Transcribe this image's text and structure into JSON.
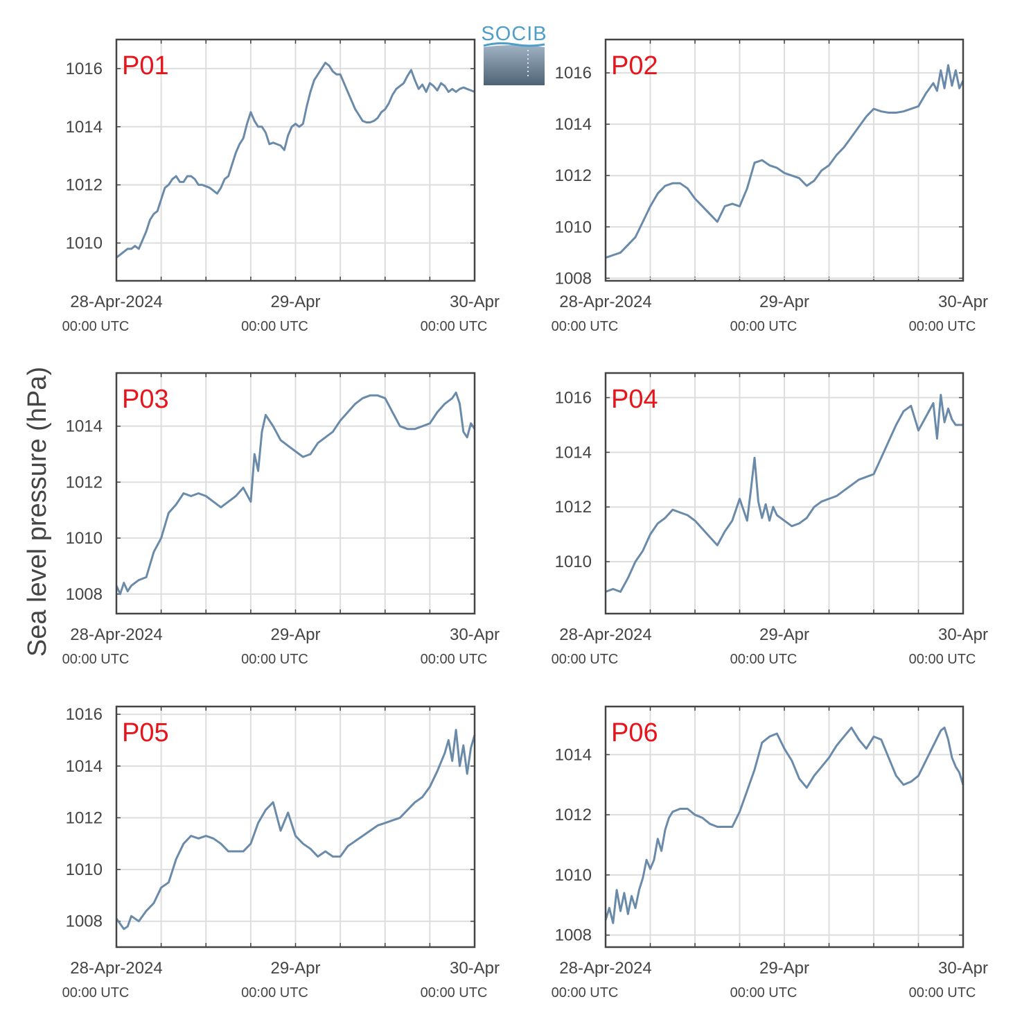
{
  "figure": {
    "ylabel": "Sea level pressure (hPa)",
    "logo_text": "SOCIB",
    "line_color": "#6a8aaa",
    "label_color": "#e8141c",
    "grid_color": "#dddddd",
    "axis_color": "#444444"
  },
  "chart_data": [
    {
      "type": "line",
      "title": "P01",
      "xlim": [
        0,
        48
      ],
      "ylim": [
        1008.7,
        1017
      ],
      "yticks": [
        1010,
        1012,
        1014,
        1016
      ],
      "xticks": [
        {
          "x": 0,
          "label": "28-Apr-2024",
          "sub": "00:00 UTC"
        },
        {
          "x": 24,
          "label": "29-Apr",
          "sub": "00:00 UTC"
        },
        {
          "x": 48,
          "label": "30-Apr",
          "sub": "00:00 UTC"
        }
      ],
      "xgrid": [
        6,
        12,
        18,
        24,
        30,
        36,
        42
      ],
      "series": [
        {
          "x": [
            0,
            0.5,
            1,
            1.5,
            2,
            2.5,
            3,
            3.5,
            4,
            4.5,
            5,
            5.5,
            6,
            6.5,
            7,
            7.5,
            8,
            8.5,
            9,
            9.5,
            10,
            10.5,
            11,
            11.5,
            12,
            12.5,
            13,
            13.5,
            14,
            14.5,
            15,
            15.5,
            16,
            16.5,
            17,
            17.5,
            18,
            18.5,
            19,
            19.5,
            20,
            20.5,
            21,
            21.5,
            22,
            22.5,
            23,
            23.5,
            24,
            24.5,
            25,
            25.5,
            26,
            26.5,
            27,
            27.5,
            28,
            28.5,
            29,
            29.5,
            30,
            30.5,
            31,
            31.5,
            32,
            32.5,
            33,
            33.5,
            34,
            34.5,
            35,
            35.5,
            36,
            36.5,
            37,
            37.5,
            38,
            38.5,
            39,
            39.5,
            40,
            40.5,
            41,
            41.5,
            42,
            42.5,
            43,
            43.5,
            44,
            44.5,
            45,
            45.5,
            46,
            46.5,
            47,
            47.5,
            48
          ],
          "y": [
            1009.5,
            1009.6,
            1009.7,
            1009.8,
            1009.8,
            1009.9,
            1009.8,
            1010.1,
            1010.4,
            1010.8,
            1011.0,
            1011.1,
            1011.5,
            1011.9,
            1012.0,
            1012.2,
            1012.3,
            1012.1,
            1012.1,
            1012.3,
            1012.3,
            1012.2,
            1012.0,
            1012.0,
            1011.95,
            1011.9,
            1011.8,
            1011.7,
            1011.9,
            1012.2,
            1012.3,
            1012.7,
            1013.1,
            1013.4,
            1013.6,
            1014.1,
            1014.5,
            1014.2,
            1014.0,
            1014.0,
            1013.8,
            1013.4,
            1013.45,
            1013.4,
            1013.35,
            1013.2,
            1013.7,
            1014.0,
            1014.1,
            1014.0,
            1014.1,
            1014.7,
            1015.2,
            1015.6,
            1015.8,
            1016.0,
            1016.2,
            1016.1,
            1015.9,
            1015.8,
            1015.8,
            1015.5,
            1015.2,
            1014.9,
            1014.6,
            1014.4,
            1014.2,
            1014.15,
            1014.15,
            1014.2,
            1014.3,
            1014.5,
            1014.6,
            1014.8,
            1015.1,
            1015.3,
            1015.4,
            1015.5,
            1015.75,
            1015.95,
            1015.6,
            1015.3,
            1015.45,
            1015.2,
            1015.5,
            1015.4,
            1015.25,
            1015.5,
            1015.4,
            1015.2,
            1015.3,
            1015.2,
            1015.3,
            1015.35,
            1015.3,
            1015.25,
            1015.2
          ]
        }
      ]
    },
    {
      "type": "line",
      "title": "P02",
      "xlim": [
        0,
        48
      ],
      "ylim": [
        1007.9,
        1017.3
      ],
      "yticks": [
        1008,
        1010,
        1012,
        1014,
        1016
      ],
      "xticks": [
        {
          "x": 0,
          "label": "28-Apr-2024",
          "sub": "00:00 UTC"
        },
        {
          "x": 24,
          "label": "29-Apr",
          "sub": "00:00 UTC"
        },
        {
          "x": 48,
          "label": "30-Apr",
          "sub": "00:00 UTC"
        }
      ],
      "xgrid": [
        6,
        12,
        18,
        24,
        30,
        36,
        42
      ],
      "series": [
        {
          "x": [
            0,
            1,
            2,
            3,
            4,
            5,
            6,
            7,
            8,
            9,
            10,
            11,
            12,
            13,
            14,
            15,
            16,
            17,
            18,
            19,
            20,
            21,
            22,
            23,
            24,
            25,
            26,
            27,
            28,
            29,
            30,
            31,
            32,
            33,
            34,
            35,
            36,
            37,
            38,
            39,
            40,
            41,
            42,
            43,
            44,
            44.5,
            45,
            45.5,
            46,
            46.5,
            47,
            47.5,
            48
          ],
          "y": [
            1008.8,
            1008.9,
            1009.0,
            1009.3,
            1009.6,
            1010.2,
            1010.8,
            1011.3,
            1011.6,
            1011.7,
            1011.7,
            1011.5,
            1011.1,
            1010.8,
            1010.5,
            1010.2,
            1010.8,
            1010.9,
            1010.8,
            1011.5,
            1012.5,
            1012.6,
            1012.4,
            1012.3,
            1012.1,
            1012.0,
            1011.9,
            1011.6,
            1011.8,
            1012.2,
            1012.4,
            1012.8,
            1013.1,
            1013.5,
            1013.9,
            1014.3,
            1014.6,
            1014.5,
            1014.45,
            1014.45,
            1014.5,
            1014.6,
            1014.7,
            1015.2,
            1015.6,
            1015.3,
            1016.1,
            1015.4,
            1016.3,
            1015.5,
            1016.1,
            1015.4,
            1015.7
          ]
        }
      ]
    },
    {
      "type": "line",
      "title": "P03",
      "xlim": [
        0,
        48
      ],
      "ylim": [
        1007.3,
        1015.9
      ],
      "yticks": [
        1008,
        1010,
        1012,
        1014
      ],
      "xticks": [
        {
          "x": 0,
          "label": "28-Apr-2024",
          "sub": "00:00 UTC"
        },
        {
          "x": 24,
          "label": "29-Apr",
          "sub": "00:00 UTC"
        },
        {
          "x": 48,
          "label": "30-Apr",
          "sub": "00:00 UTC"
        }
      ],
      "xgrid": [
        6,
        12,
        18,
        24,
        30,
        36,
        42
      ],
      "series": [
        {
          "x": [
            0,
            0.5,
            1,
            1.5,
            2,
            3,
            4,
            5,
            6,
            7,
            8,
            9,
            10,
            11,
            12,
            13,
            14,
            15,
            16,
            17,
            18,
            18.5,
            19,
            19.5,
            20,
            21,
            22,
            23,
            24,
            25,
            26,
            27,
            28,
            29,
            30,
            31,
            32,
            33,
            34,
            35,
            36,
            37,
            38,
            39,
            40,
            41,
            42,
            43,
            44,
            45,
            45.5,
            46,
            46.5,
            47,
            47.5,
            48
          ],
          "y": [
            1008.3,
            1008.0,
            1008.4,
            1008.1,
            1008.3,
            1008.5,
            1008.6,
            1009.5,
            1010.0,
            1010.9,
            1011.2,
            1011.6,
            1011.5,
            1011.6,
            1011.5,
            1011.3,
            1011.1,
            1011.3,
            1011.5,
            1011.8,
            1011.3,
            1013.0,
            1012.4,
            1013.8,
            1014.4,
            1014.0,
            1013.5,
            1013.3,
            1013.1,
            1012.9,
            1013.0,
            1013.4,
            1013.6,
            1013.8,
            1014.2,
            1014.5,
            1014.8,
            1015.0,
            1015.1,
            1015.1,
            1015.0,
            1014.5,
            1014.0,
            1013.9,
            1013.9,
            1014.0,
            1014.1,
            1014.5,
            1014.8,
            1015.0,
            1015.2,
            1014.8,
            1013.8,
            1013.6,
            1014.1,
            1013.9
          ]
        }
      ]
    },
    {
      "type": "line",
      "title": "P04",
      "xlim": [
        0,
        48
      ],
      "ylim": [
        1008.1,
        1016.9
      ],
      "yticks": [
        1010,
        1012,
        1014,
        1016
      ],
      "xticks": [
        {
          "x": 0,
          "label": "28-Apr-2024",
          "sub": "00:00 UTC"
        },
        {
          "x": 24,
          "label": "29-Apr",
          "sub": "00:00 UTC"
        },
        {
          "x": 48,
          "label": "30-Apr",
          "sub": "00:00 UTC"
        }
      ],
      "xgrid": [
        6,
        12,
        18,
        24,
        30,
        36,
        42
      ],
      "series": [
        {
          "x": [
            0,
            1,
            2,
            3,
            4,
            5,
            6,
            7,
            8,
            9,
            10,
            11,
            12,
            13,
            14,
            15,
            16,
            17,
            18,
            19,
            19.5,
            20,
            20.5,
            21,
            21.5,
            22,
            22.5,
            23,
            24,
            25,
            26,
            27,
            28,
            29,
            30,
            31,
            32,
            33,
            34,
            35,
            36,
            37,
            38,
            39,
            40,
            41,
            42,
            43,
            44,
            44.5,
            45,
            45.5,
            46,
            46.5,
            47,
            47.5,
            48
          ],
          "y": [
            1008.9,
            1009.0,
            1008.9,
            1009.4,
            1010.0,
            1010.4,
            1011.0,
            1011.4,
            1011.6,
            1011.9,
            1011.8,
            1011.7,
            1011.5,
            1011.2,
            1010.9,
            1010.6,
            1011.1,
            1011.5,
            1012.3,
            1011.5,
            1012.6,
            1013.8,
            1012.2,
            1011.6,
            1012.1,
            1011.5,
            1012.0,
            1011.7,
            1011.5,
            1011.3,
            1011.4,
            1011.6,
            1012.0,
            1012.2,
            1012.3,
            1012.4,
            1012.6,
            1012.8,
            1013.0,
            1013.1,
            1013.2,
            1013.8,
            1014.4,
            1015.0,
            1015.5,
            1015.7,
            1014.8,
            1015.3,
            1015.8,
            1014.5,
            1016.1,
            1015.1,
            1015.6,
            1015.2,
            1015.0,
            1015.0,
            1015.0
          ]
        }
      ]
    },
    {
      "type": "line",
      "title": "P05",
      "xlim": [
        0,
        48
      ],
      "ylim": [
        1007.0,
        1016.3
      ],
      "yticks": [
        1008,
        1010,
        1012,
        1014,
        1016
      ],
      "xticks": [
        {
          "x": 0,
          "label": "28-Apr-2024",
          "sub": "00:00 UTC"
        },
        {
          "x": 24,
          "label": "29-Apr",
          "sub": "00:00 UTC"
        },
        {
          "x": 48,
          "label": "30-Apr",
          "sub": "00:00 UTC"
        }
      ],
      "xgrid": [
        6,
        12,
        18,
        24,
        30,
        36,
        42
      ],
      "series": [
        {
          "x": [
            0,
            0.5,
            1,
            1.5,
            2,
            3,
            4,
            5,
            6,
            7,
            8,
            9,
            10,
            11,
            12,
            13,
            14,
            15,
            16,
            17,
            18,
            19,
            20,
            21,
            22,
            23,
            24,
            25,
            26,
            27,
            28,
            29,
            30,
            31,
            32,
            33,
            34,
            35,
            36,
            37,
            38,
            39,
            40,
            41,
            42,
            43,
            44,
            44.5,
            45,
            45.5,
            46,
            46.5,
            47,
            47.5,
            48
          ],
          "y": [
            1008.1,
            1007.9,
            1007.7,
            1007.8,
            1008.2,
            1008.0,
            1008.4,
            1008.7,
            1009.3,
            1009.5,
            1010.4,
            1011.0,
            1011.3,
            1011.2,
            1011.3,
            1011.2,
            1011.0,
            1010.7,
            1010.7,
            1010.7,
            1011.0,
            1011.8,
            1012.3,
            1012.6,
            1011.5,
            1012.2,
            1011.3,
            1011.0,
            1010.8,
            1010.5,
            1010.7,
            1010.5,
            1010.5,
            1010.9,
            1011.1,
            1011.3,
            1011.5,
            1011.7,
            1011.8,
            1011.9,
            1012.0,
            1012.3,
            1012.6,
            1012.8,
            1013.2,
            1013.8,
            1014.5,
            1015.0,
            1014.2,
            1015.4,
            1014.0,
            1014.8,
            1013.7,
            1014.7,
            1015.2
          ]
        }
      ]
    },
    {
      "type": "line",
      "title": "P06",
      "xlim": [
        0,
        48
      ],
      "ylim": [
        1007.6,
        1015.6
      ],
      "yticks": [
        1008,
        1010,
        1012,
        1014
      ],
      "xticks": [
        {
          "x": 0,
          "label": "28-Apr-2024",
          "sub": "00:00 UTC"
        },
        {
          "x": 24,
          "label": "29-Apr",
          "sub": "00:00 UTC"
        },
        {
          "x": 48,
          "label": "30-Apr",
          "sub": "00:00 UTC"
        }
      ],
      "xgrid": [
        6,
        12,
        18,
        24,
        30,
        36,
        42
      ],
      "series": [
        {
          "x": [
            0,
            0.5,
            1,
            1.5,
            2,
            2.5,
            3,
            3.5,
            4,
            4.5,
            5,
            5.5,
            6,
            6.5,
            7,
            7.5,
            8,
            8.5,
            9,
            10,
            11,
            12,
            13,
            14,
            15,
            16,
            17,
            18,
            19,
            20,
            21,
            22,
            23,
            24,
            25,
            26,
            27,
            28,
            29,
            30,
            31,
            32,
            33,
            34,
            35,
            36,
            37,
            38,
            39,
            40,
            41,
            42,
            43,
            44,
            45,
            45.5,
            46,
            46.5,
            47,
            47.5,
            48
          ],
          "y": [
            1008.5,
            1008.9,
            1008.4,
            1009.5,
            1008.8,
            1009.4,
            1008.7,
            1009.3,
            1008.9,
            1009.5,
            1009.9,
            1010.5,
            1010.2,
            1010.5,
            1011.2,
            1010.8,
            1011.5,
            1011.9,
            1012.1,
            1012.2,
            1012.2,
            1012.0,
            1011.9,
            1011.7,
            1011.6,
            1011.6,
            1011.6,
            1012.1,
            1012.8,
            1013.5,
            1014.4,
            1014.6,
            1014.7,
            1014.2,
            1013.8,
            1013.2,
            1012.9,
            1013.3,
            1013.6,
            1013.9,
            1014.3,
            1014.6,
            1014.9,
            1014.5,
            1014.2,
            1014.6,
            1014.5,
            1013.9,
            1013.3,
            1013.0,
            1013.1,
            1013.3,
            1013.8,
            1014.3,
            1014.8,
            1014.9,
            1014.5,
            1013.9,
            1013.6,
            1013.4,
            1013.0
          ]
        }
      ]
    }
  ]
}
